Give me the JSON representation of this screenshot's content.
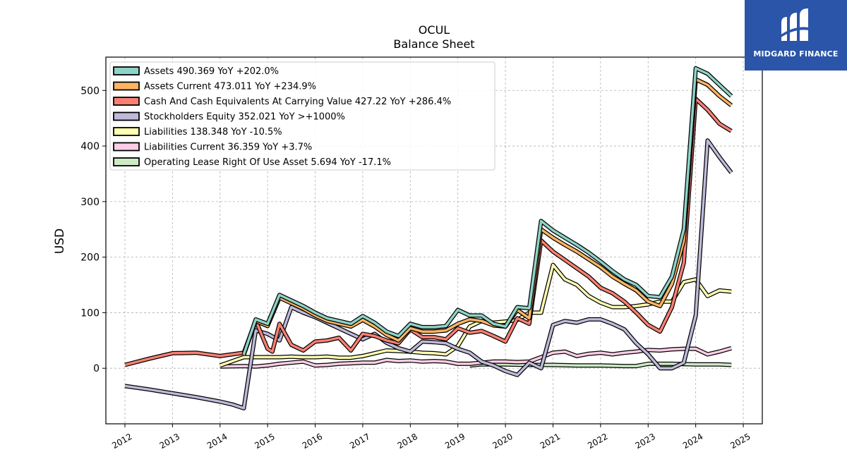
{
  "chart_data": {
    "type": "line",
    "title": "OCUL",
    "subtitle": "Balance  Sheet",
    "ylabel": "USD",
    "xlabel": "",
    "xlim": [
      2011.6,
      2025.4
    ],
    "ylim": [
      -100,
      560
    ],
    "yticks": [
      0,
      100,
      200,
      300,
      400,
      500
    ],
    "xticks": [
      "2012",
      "2013",
      "2014",
      "2015",
      "2016",
      "2017",
      "2018",
      "2019",
      "2020",
      "2021",
      "2022",
      "2023",
      "2024",
      "2025"
    ],
    "grid": true,
    "legend_position": "top-left",
    "series": [
      {
        "name": "Assets  490.369 YoY +202.0%",
        "color": "#8dd3c7",
        "x": [
          2014.5,
          2014.75,
          2015.0,
          2015.25,
          2015.5,
          2015.75,
          2016.0,
          2016.25,
          2016.5,
          2016.75,
          2017.0,
          2017.25,
          2017.5,
          2017.75,
          2018.0,
          2018.25,
          2018.5,
          2018.75,
          2019.0,
          2019.25,
          2019.5,
          2019.75,
          2020.0,
          2020.25,
          2020.5,
          2020.75,
          2021.0,
          2021.25,
          2021.5,
          2021.75,
          2022.0,
          2022.25,
          2022.5,
          2022.75,
          2023.0,
          2023.25,
          2023.5,
          2023.75,
          2024.0,
          2024.25,
          2024.5,
          2024.75
        ],
        "y": [
          25,
          88,
          80,
          132,
          122,
          112,
          100,
          90,
          85,
          80,
          94,
          82,
          66,
          58,
          80,
          74,
          74,
          76,
          105,
          95,
          95,
          80,
          75,
          110,
          108,
          265,
          248,
          235,
          222,
          208,
          192,
          175,
          160,
          150,
          130,
          128,
          165,
          250,
          540,
          530,
          510,
          490
        ]
      },
      {
        "name": "Assets Current  473.011 YoY +234.9%",
        "color": "#fdb462",
        "x": [
          2014.5,
          2014.75,
          2015.0,
          2015.25,
          2015.5,
          2015.75,
          2016.0,
          2016.25,
          2016.5,
          2016.75,
          2017.0,
          2017.25,
          2017.5,
          2017.75,
          2018.0,
          2018.25,
          2018.5,
          2018.75,
          2019.0,
          2019.25,
          2019.5,
          2019.75,
          2020.0,
          2020.25,
          2020.5,
          2020.75,
          2021.0,
          2021.25,
          2021.5,
          2021.75,
          2022.0,
          2022.25,
          2022.5,
          2022.75,
          2023.0,
          2023.25,
          2023.5,
          2023.75,
          2024.0,
          2024.25,
          2024.5,
          2024.75
        ],
        "y": [
          24,
          85,
          76,
          127,
          117,
          107,
          95,
          85,
          80,
          75,
          87,
          75,
          60,
          50,
          72,
          66,
          66,
          68,
          80,
          88,
          85,
          77,
          75,
          105,
          90,
          250,
          235,
          222,
          210,
          196,
          182,
          165,
          152,
          140,
          120,
          112,
          152,
          230,
          520,
          510,
          490,
          473
        ]
      },
      {
        "name": "Cash And Cash Equivalents At Carrying Value  427.22 YoY +286.4%",
        "color": "#fb8072",
        "x": [
          2012.0,
          2012.5,
          2013.0,
          2013.5,
          2014.0,
          2014.5,
          2014.75,
          2015.0,
          2015.1,
          2015.25,
          2015.5,
          2015.75,
          2016.0,
          2016.25,
          2016.5,
          2016.75,
          2017.0,
          2017.25,
          2017.5,
          2017.75,
          2018.0,
          2018.25,
          2018.5,
          2018.75,
          2019.0,
          2019.25,
          2019.5,
          2019.75,
          2020.0,
          2020.25,
          2020.5,
          2020.75,
          2021.0,
          2021.25,
          2021.5,
          2021.75,
          2022.0,
          2022.25,
          2022.5,
          2022.75,
          2023.0,
          2023.25,
          2023.5,
          2023.75,
          2024.0,
          2024.25,
          2024.5,
          2024.75
        ],
        "y": [
          6,
          17,
          27,
          28,
          22,
          28,
          86,
          35,
          30,
          80,
          42,
          32,
          48,
          50,
          55,
          32,
          62,
          58,
          50,
          45,
          70,
          56,
          56,
          52,
          72,
          64,
          67,
          58,
          48,
          90,
          80,
          230,
          210,
          195,
          180,
          165,
          145,
          135,
          120,
          100,
          78,
          66,
          110,
          190,
          485,
          465,
          440,
          427
        ]
      },
      {
        "name": "Stockholders Equity  352.021 YoY >+1000%",
        "color": "#bebada",
        "x": [
          2012.0,
          2012.5,
          2013.0,
          2013.5,
          2014.0,
          2014.25,
          2014.5,
          2014.75,
          2015.0,
          2015.25,
          2015.5,
          2015.75,
          2016.0,
          2016.25,
          2016.5,
          2016.75,
          2017.0,
          2017.25,
          2017.5,
          2017.75,
          2018.0,
          2018.25,
          2018.5,
          2018.75,
          2019.0,
          2019.25,
          2019.5,
          2019.75,
          2020.0,
          2020.25,
          2020.5,
          2020.75,
          2021.0,
          2021.25,
          2021.5,
          2021.75,
          2022.0,
          2022.25,
          2022.5,
          2022.75,
          2023.0,
          2023.25,
          2023.5,
          2023.75,
          2024.0,
          2024.25,
          2024.5,
          2024.75
        ],
        "y": [
          -32,
          -38,
          -45,
          -52,
          -60,
          -65,
          -72,
          68,
          62,
          50,
          110,
          100,
          92,
          82,
          72,
          62,
          52,
          62,
          46,
          36,
          30,
          48,
          47,
          45,
          35,
          28,
          12,
          5,
          -5,
          -12,
          10,
          0,
          78,
          85,
          82,
          88,
          88,
          80,
          70,
          45,
          25,
          0,
          0,
          10,
          95,
          410,
          380,
          352
        ]
      },
      {
        "name": "Liabilities  138.348 YoY -10.5%",
        "color": "#ffffb3",
        "x": [
          2014.0,
          2014.5,
          2014.75,
          2015.0,
          2015.25,
          2015.5,
          2015.75,
          2016.0,
          2016.25,
          2016.5,
          2016.75,
          2017.0,
          2017.25,
          2017.5,
          2017.75,
          2018.0,
          2018.25,
          2018.5,
          2018.75,
          2019.0,
          2019.25,
          2019.5,
          2019.75,
          2020.0,
          2020.25,
          2020.5,
          2020.75,
          2021.0,
          2021.25,
          2021.5,
          2021.75,
          2022.0,
          2022.25,
          2022.5,
          2022.75,
          2023.0,
          2023.25,
          2023.5,
          2023.75,
          2024.0,
          2024.25,
          2024.5,
          2024.75
        ],
        "y": [
          5,
          20,
          20,
          20,
          20,
          21,
          20,
          20,
          21,
          19,
          19,
          22,
          27,
          32,
          31,
          30,
          28,
          27,
          25,
          40,
          75,
          85,
          82,
          84,
          87,
          100,
          100,
          186,
          160,
          150,
          130,
          118,
          110,
          110,
          112,
          115,
          120,
          120,
          155,
          160,
          130,
          140,
          138
        ]
      },
      {
        "name": "Liabilities Current  36.359 YoY +3.7%",
        "color": "#fccde5",
        "x": [
          2014.0,
          2014.5,
          2014.75,
          2015.0,
          2015.25,
          2015.5,
          2015.75,
          2016.0,
          2016.25,
          2016.5,
          2016.75,
          2017.0,
          2017.25,
          2017.5,
          2017.75,
          2018.0,
          2018.25,
          2018.5,
          2018.75,
          2019.0,
          2019.25,
          2019.5,
          2019.75,
          2020.0,
          2020.25,
          2020.5,
          2020.75,
          2021.0,
          2021.25,
          2021.5,
          2021.75,
          2022.0,
          2022.25,
          2022.5,
          2022.75,
          2023.0,
          2023.25,
          2023.5,
          2023.75,
          2024.0,
          2024.25,
          2024.5,
          2024.75
        ],
        "y": [
          3,
          4,
          3,
          5,
          8,
          10,
          12,
          5,
          6,
          8,
          9,
          10,
          10,
          15,
          13,
          14,
          12,
          13,
          12,
          8,
          8,
          10,
          12,
          12,
          11,
          12,
          20,
          28,
          30,
          22,
          26,
          28,
          25,
          28,
          30,
          33,
          32,
          34,
          35,
          35,
          25,
          30,
          36
        ]
      },
      {
        "name": "Operating Lease Right Of Use Asset  5.694 YoY -17.1%",
        "color": "#ccebc5",
        "x": [
          2019.25,
          2019.5,
          2020.0,
          2020.5,
          2021.0,
          2021.5,
          2022.0,
          2022.5,
          2022.75,
          2023.0,
          2023.5,
          2024.0,
          2024.5,
          2024.75
        ],
        "y": [
          5,
          7,
          7,
          6,
          6,
          5,
          5,
          4,
          4,
          8,
          8,
          7,
          7,
          6
        ]
      }
    ]
  },
  "logo": {
    "text": "MIDGARD FINANCE"
  }
}
